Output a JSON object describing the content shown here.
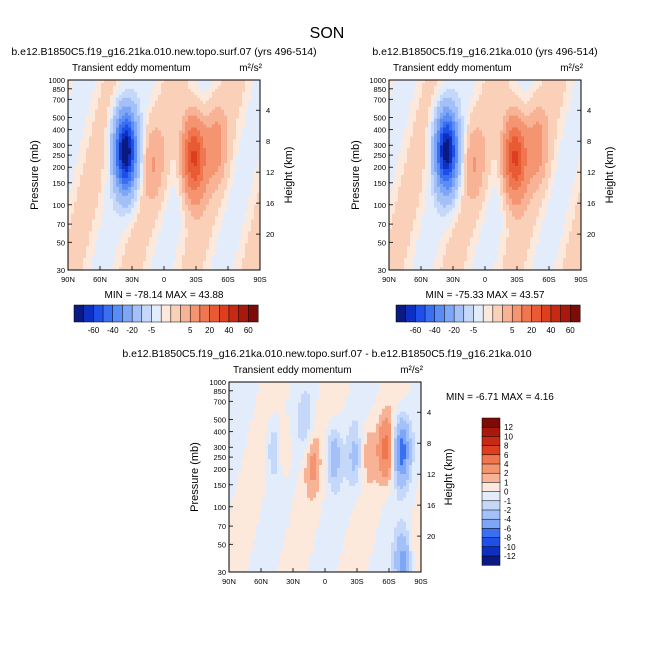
{
  "figure": {
    "season": "SON"
  },
  "chart_data": [
    {
      "type": "heatmap",
      "title": "b.e12.B1850C5.f19_g16.21ka.010.new.topo.surf.07 (yrs 496-514)",
      "left_title": "Transient eddy momentum",
      "units": "m²/s²",
      "ylabel": "Pressure (mb)",
      "ylabel_right": "Height (km)",
      "x_ticks": [
        "90N",
        "60N",
        "30N",
        "0",
        "30S",
        "60S",
        "90S"
      ],
      "y_ticks": [
        "30",
        "50",
        "70",
        "100",
        "150",
        "200",
        "250",
        "300",
        "400",
        "500",
        "700",
        "850",
        "1000"
      ],
      "height_ticks": [
        "20",
        "16",
        "12",
        "8",
        "4"
      ],
      "min_max_text": "MIN = -78.14  MAX = 43.88",
      "features": [
        {
          "lat": 36,
          "p": 270,
          "value": -78
        },
        {
          "lat": -28,
          "p": 240,
          "value": 44
        },
        {
          "lat": -48,
          "p": 300,
          "value": 12
        },
        {
          "lat": 10,
          "p": 220,
          "value": 8
        }
      ]
    },
    {
      "type": "heatmap",
      "title": "b.e12.B1850C5.f19_g16.21ka.010 (yrs 496-514)",
      "left_title": "Transient eddy momentum",
      "units": "m²/s²",
      "ylabel": "Pressure (mb)",
      "ylabel_right": "Height (km)",
      "x_ticks": [
        "90N",
        "60N",
        "30N",
        "0",
        "30S",
        "60S",
        "90S"
      ],
      "y_ticks": [
        "30",
        "50",
        "70",
        "100",
        "150",
        "200",
        "250",
        "300",
        "400",
        "500",
        "700",
        "850",
        "1000"
      ],
      "height_ticks": [
        "20",
        "16",
        "12",
        "8",
        "4"
      ],
      "min_max_text": "MIN = -75.33  MAX = 43.57",
      "features": [
        {
          "lat": 36,
          "p": 270,
          "value": -75
        },
        {
          "lat": -28,
          "p": 240,
          "value": 44
        },
        {
          "lat": -48,
          "p": 300,
          "value": 12
        },
        {
          "lat": 10,
          "p": 220,
          "value": 8
        }
      ]
    },
    {
      "type": "heatmap",
      "title": "b.e12.B1850C5.f19_g16.21ka.010.new.topo.surf.07 - b.e12.B1850C5.f19_g16.21ka.010",
      "left_title": "Transient eddy momentum",
      "units": "m²/s²",
      "ylabel": "Pressure (mb)",
      "ylabel_right": "Height (km)",
      "x_ticks": [
        "90N",
        "60N",
        "30N",
        "0",
        "30S",
        "60S",
        "90S"
      ],
      "y_ticks": [
        "30",
        "50",
        "70",
        "100",
        "150",
        "200",
        "250",
        "300",
        "400",
        "500",
        "700",
        "850",
        "1000"
      ],
      "height_ticks": [
        "20",
        "16",
        "12",
        "8",
        "4"
      ],
      "min_max_text": "MIN = -6.71  MAX =  4.16",
      "features": [
        {
          "lat": -57,
          "p": 290,
          "value": 4.2
        },
        {
          "lat": -72,
          "p": 280,
          "value": -6.7
        },
        {
          "lat": -73,
          "p": 35,
          "value": -5
        },
        {
          "lat": 48,
          "p": 300,
          "value": -2
        },
        {
          "lat": -8,
          "p": 260,
          "value": -3
        },
        {
          "lat": 12,
          "p": 220,
          "value": 2
        },
        {
          "lat": 38,
          "p": 280,
          "value": 1.5
        },
        {
          "lat": -28,
          "p": 250,
          "value": -2
        },
        {
          "lat": 18,
          "p": 460,
          "value": -1.5
        },
        {
          "lat": -40,
          "p": 280,
          "value": 1.5
        }
      ]
    }
  ],
  "colorbar_abs": {
    "levels": [
      "-60",
      "-40",
      "-20",
      "-5",
      "5",
      "20",
      "40",
      "60"
    ],
    "colors": [
      "#0a1a80",
      "#0d2fc2",
      "#1e4fe8",
      "#3a6ff2",
      "#5a8cf5",
      "#7ea6f6",
      "#a3c0f8",
      "#c5d8fa",
      "#e3ecfb",
      "#fde9dc",
      "#fbd0b8",
      "#f8b295",
      "#f49470",
      "#ef764f",
      "#e85a33",
      "#dd3e1e",
      "#c72a14",
      "#a8180c",
      "#7d0b06"
    ]
  },
  "colorbar_diff": {
    "levels": [
      "12",
      "10",
      "8",
      "6",
      "4",
      "2",
      "1",
      "0",
      "-1",
      "-2",
      "-4",
      "-6",
      "-8",
      "-10",
      "-12"
    ],
    "colors": [
      "#7d0b06",
      "#a8180c",
      "#c72a14",
      "#dd3e1e",
      "#ef764f",
      "#f49470",
      "#f8b295",
      "#fde9dc",
      "#e3ecfb",
      "#c5d8fa",
      "#a3c0f8",
      "#7ea6f6",
      "#3a6ff2",
      "#1e4fe8",
      "#0d2fc2",
      "#0a1a80"
    ]
  }
}
